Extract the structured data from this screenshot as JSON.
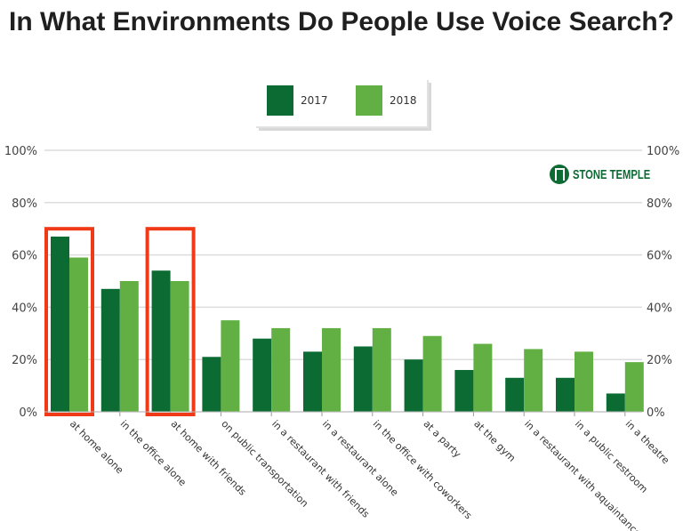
{
  "chart_data": {
    "type": "bar",
    "title": "In What Environments Do People Use Voice Search?",
    "categories": [
      "at home alone",
      "in the office alone",
      "at home with friends",
      "on public transportation",
      "in a restaurant with friends",
      "in a restaurant alone",
      "in the office with coworkers",
      "at a party",
      "at the gym",
      "in a restaurant with aquaintances",
      "in a public restroom",
      "in a theatre"
    ],
    "series": [
      {
        "name": "2017",
        "color": "#0b6b32",
        "values": [
          67,
          47,
          54,
          21,
          28,
          23,
          25,
          20,
          16,
          13,
          13,
          7
        ]
      },
      {
        "name": "2018",
        "color": "#62b044",
        "values": [
          59,
          50,
          50,
          35,
          32,
          32,
          32,
          29,
          26,
          24,
          23,
          19
        ]
      }
    ],
    "ylim": [
      0,
      100
    ],
    "yticks": [
      "0%",
      "20%",
      "40%",
      "60%",
      "80%",
      "100%"
    ],
    "ytick_values": [
      0,
      20,
      40,
      60,
      80,
      100
    ],
    "grid": true,
    "legend_placement": "top-center",
    "highlighted_categories": [
      "at home alone",
      "at home with friends"
    ],
    "highlight_color": "#f03a17",
    "logo_text": "STONE TEMPLE"
  }
}
